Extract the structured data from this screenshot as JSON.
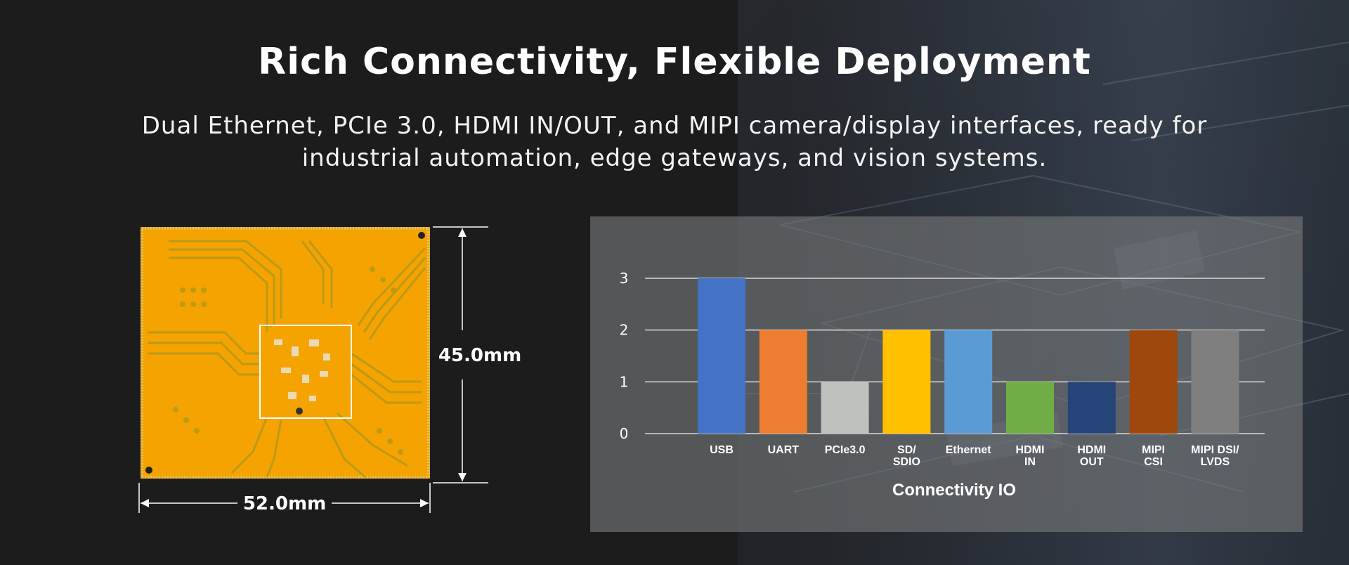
{
  "header": {
    "title": "Rich Connectivity, Flexible Deployment",
    "subtitle_line1": "Dual Ethernet, PCIe 3.0, HDMI IN/OUT, and MIPI camera/display interfaces, ready for",
    "subtitle_line2": "industrial automation, edge gateways, and vision systems."
  },
  "board": {
    "height_label": "45.0mm",
    "width_label": "52.0mm",
    "board_color": "#f5a300",
    "trace_color": "#b8a01e"
  },
  "chart_data": {
    "type": "bar",
    "categories": [
      [
        "USB"
      ],
      [
        "UART"
      ],
      [
        "PCIe3.0"
      ],
      [
        "SD/",
        "SDIO"
      ],
      [
        "Ethernet"
      ],
      [
        "HDMI",
        "IN"
      ],
      [
        "HDMI",
        "OUT"
      ],
      [
        "MIPI",
        "CSI"
      ],
      [
        "MIPI DSI/",
        "LVDS"
      ]
    ],
    "values": [
      3,
      2,
      1,
      2,
      2,
      1,
      1,
      2,
      2
    ],
    "colors": [
      "#4472c4",
      "#ed7d31",
      "#bfc1bf",
      "#ffc000",
      "#5b9bd5",
      "#70ad47",
      "#264478",
      "#9e480e",
      "#7f7f7f"
    ],
    "title": "",
    "xlabel": "Connectivity IO",
    "ylabel": "",
    "ylim": [
      0,
      3
    ],
    "yticks": [
      "0",
      "1",
      "2",
      "3"
    ],
    "grid": true,
    "legend": "none"
  }
}
